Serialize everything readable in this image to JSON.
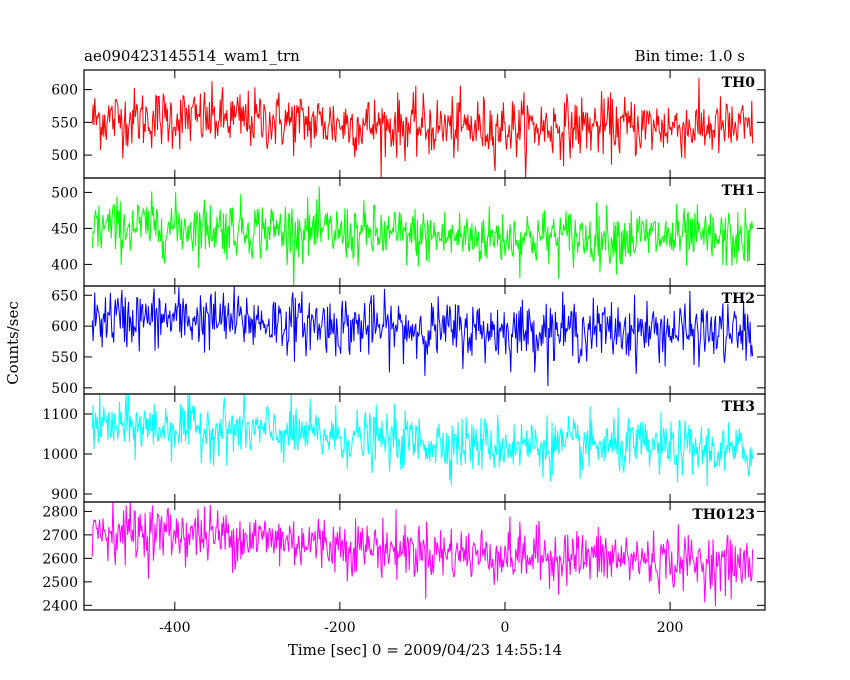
{
  "chart_data": {
    "type": "line",
    "title": "ae090423145514_wam1_trn",
    "subtitle": "Bin time: 1.0 s",
    "xlabel": "Time [sec] 0 = 2009/04/23 14:55:14",
    "ylabel": "Counts/sec",
    "xlim": [
      -510,
      315
    ],
    "xticks": [
      -400,
      -200,
      0,
      200
    ],
    "x_start": -500,
    "x_end": 300,
    "bin": 1.0,
    "panels": [
      {
        "name": "TH0",
        "color": "#ff0000",
        "ylim": [
          465,
          630
        ],
        "yticks": [
          500,
          550,
          600
        ],
        "mean_start": 555,
        "mean_end": 538,
        "noise": 23
      },
      {
        "name": "TH1",
        "color": "#00ff00",
        "ylim": [
          370,
          520
        ],
        "yticks": [
          400,
          450,
          500
        ],
        "mean_start": 452,
        "mean_end": 432,
        "noise": 20
      },
      {
        "name": "TH2",
        "color": "#0000ff",
        "ylim": [
          490,
          665
        ],
        "yticks": [
          500,
          550,
          600,
          650
        ],
        "mean_start": 612,
        "mean_end": 585,
        "noise": 24
      },
      {
        "name": "TH3",
        "color": "#00ffff",
        "ylim": [
          880,
          1150
        ],
        "yticks": [
          900,
          1000,
          1100
        ],
        "mean_start": 1070,
        "mean_end": 1000,
        "noise": 35
      },
      {
        "name": "TH0123",
        "color": "#ff00ff",
        "ylim": [
          2380,
          2840
        ],
        "yticks": [
          2400,
          2500,
          2600,
          2700,
          2800
        ],
        "mean_start": 2720,
        "mean_end": 2560,
        "noise": 60
      }
    ]
  }
}
